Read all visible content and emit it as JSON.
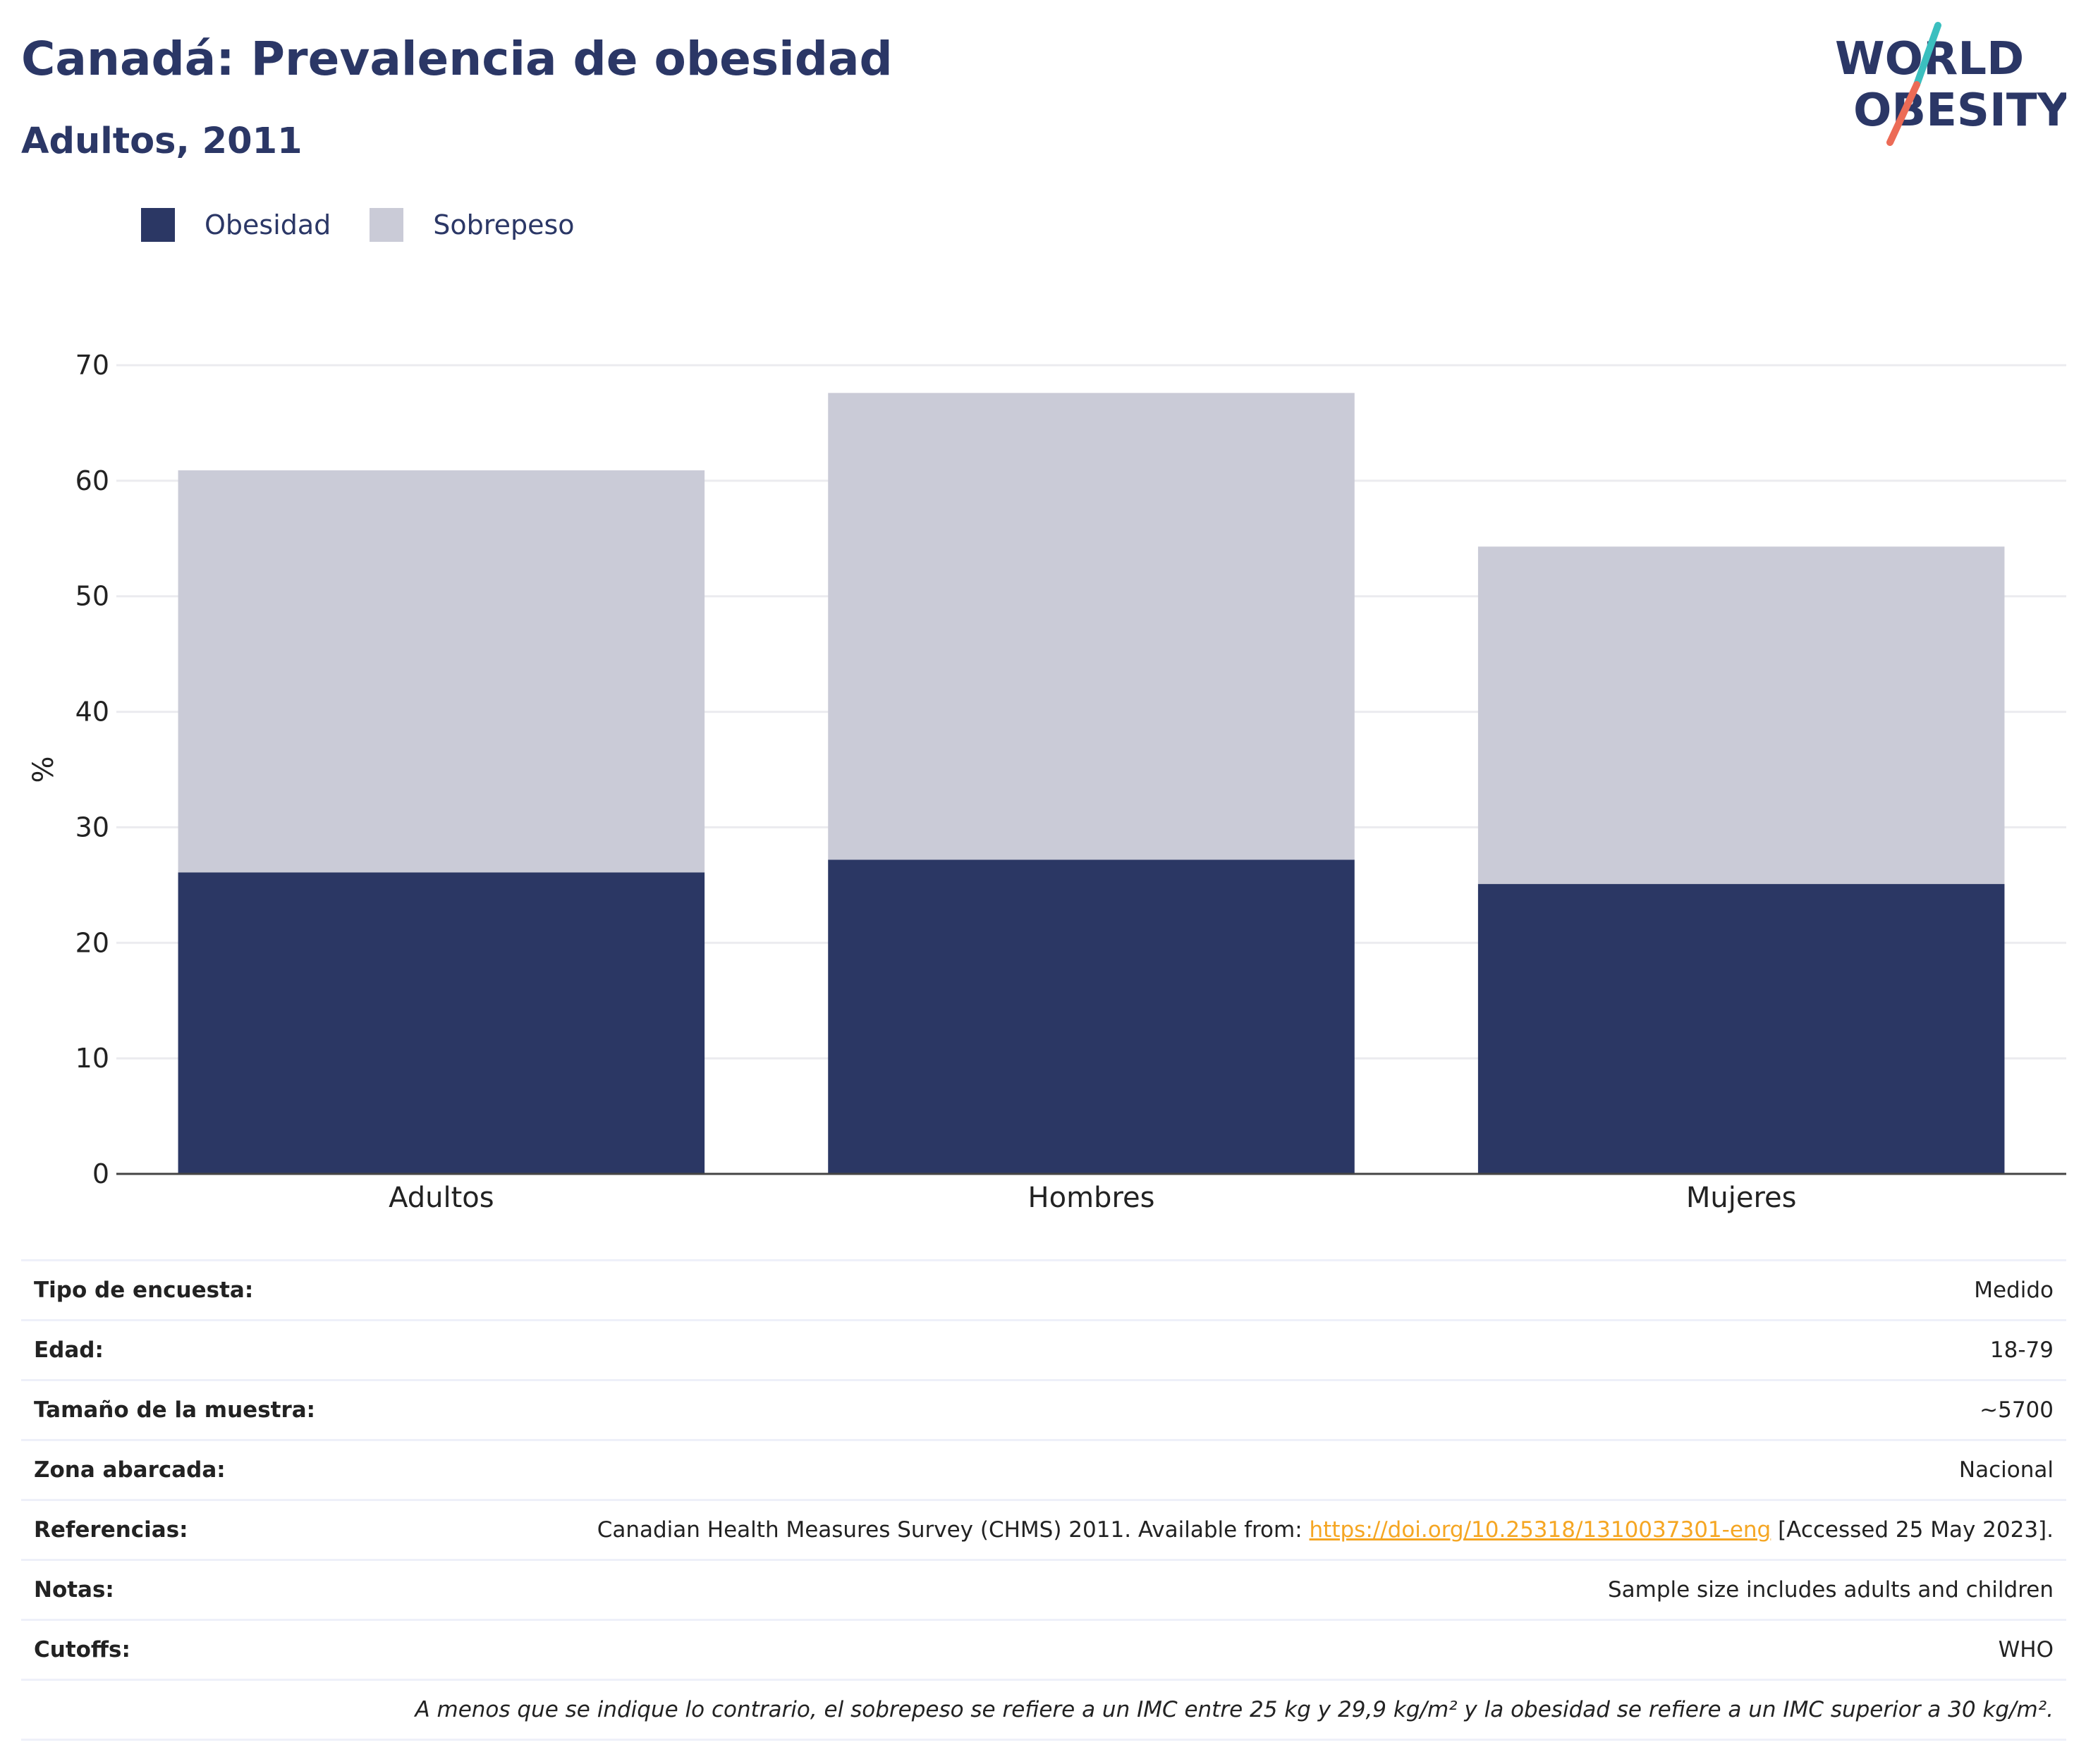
{
  "header": {
    "title": "Canadá: Prevalencia de obesidad",
    "subtitle": "Adultos, 2011",
    "logo_line1": "WORLD",
    "logo_line2": "OBESITY"
  },
  "legend": [
    {
      "label": "Obesidad",
      "color": "#2b3764"
    },
    {
      "label": "Sobrepeso",
      "color": "#cacbd7"
    }
  ],
  "chart_data": {
    "type": "bar",
    "stacked": true,
    "categories": [
      "Adultos",
      "Hombres",
      "Mujeres"
    ],
    "series": [
      {
        "name": "Obesidad",
        "values": [
          26.1,
          27.2,
          25.1
        ],
        "color": "#2b3764"
      },
      {
        "name": "Sobrepeso",
        "values": [
          34.8,
          40.4,
          29.2
        ],
        "color": "#cacbd7"
      }
    ],
    "title": "Canadá: Prevalencia de obesidad",
    "subtitle": "Adultos, 2011",
    "xlabel": "",
    "ylabel": "%",
    "ylim": [
      0,
      70
    ],
    "yticks": [
      0,
      10,
      20,
      30,
      40,
      50,
      60,
      70
    ],
    "grid": true,
    "legend_position": "top-left"
  },
  "info": {
    "rows": [
      {
        "key": "Tipo de encuesta:",
        "value": "Medido"
      },
      {
        "key": "Edad:",
        "value": "18-79"
      },
      {
        "key": "Tamaño de la muestra:",
        "value": "~5700"
      },
      {
        "key": "Zona abarcada:",
        "value": "Nacional"
      }
    ],
    "references": {
      "key": "Referencias:",
      "before": "Canadian Health Measures Survey (CHMS) 2011. Available from: ",
      "link": "https://doi.org/10.25318/1310037301-eng",
      "after": " [Accessed 25 May 2023]."
    },
    "rows2": [
      {
        "key": "Notas:",
        "value": "Sample size includes adults and children"
      },
      {
        "key": "Cutoffs:",
        "value": "WHO"
      }
    ],
    "footnote": "A menos que se indique lo contrario, el sobrepeso se refiere a un IMC entre 25 kg y 29,9 kg/m² y la obesidad se refiere a un IMC superior a 30 kg/m²."
  }
}
